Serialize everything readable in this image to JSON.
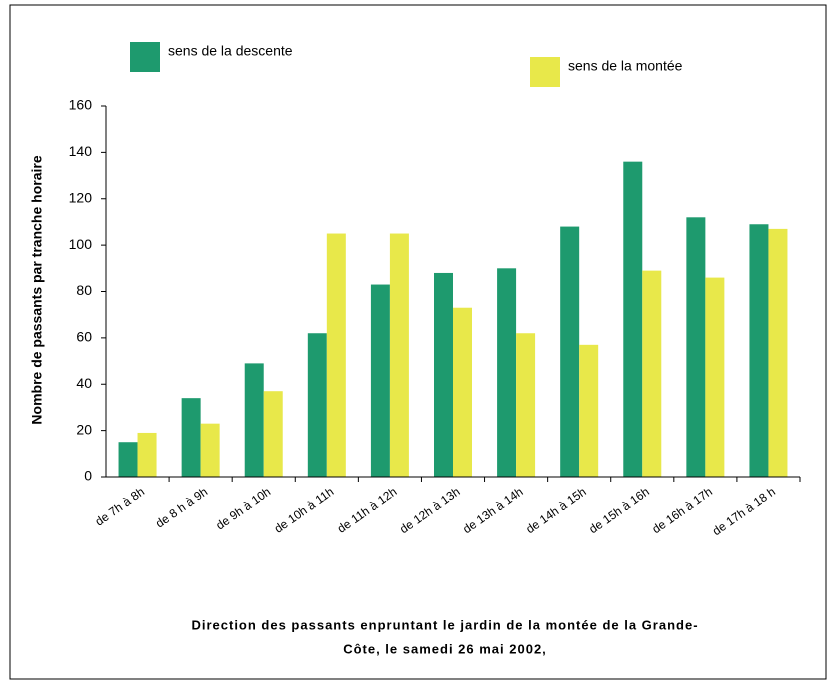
{
  "chart_data": {
    "type": "bar",
    "title": [
      "Direction des passants enpruntant le jardin de la montée de la Grande-",
      "Côte, le samedi 26 mai 2002,"
    ],
    "ylabel": "Nombre de passants par tranche horaire",
    "categories": [
      "de 7h à 8h",
      "de 8 h à 9h",
      "de 9h à 10h",
      "de 10h à 11h",
      "de 11h à 12h",
      "de 12h à 13h",
      "de 13h à 14h",
      "de 14h à 15h",
      "de 15h à 16h",
      "de 16h à 17h",
      "de 17h à 18 h"
    ],
    "series": [
      {
        "name": "sens de la descente",
        "color": "#1e9a6e",
        "values": [
          15,
          34,
          49,
          62,
          83,
          88,
          90,
          108,
          136,
          112,
          109
        ]
      },
      {
        "name": "sens de la montée",
        "color": "#e8e84a",
        "values": [
          19,
          23,
          37,
          105,
          105,
          73,
          62,
          57,
          89,
          86,
          107
        ]
      }
    ],
    "ylim": [
      0,
      160
    ],
    "yticks": [
      0,
      20,
      40,
      60,
      80,
      100,
      120,
      140,
      160
    ],
    "grid": false
  }
}
